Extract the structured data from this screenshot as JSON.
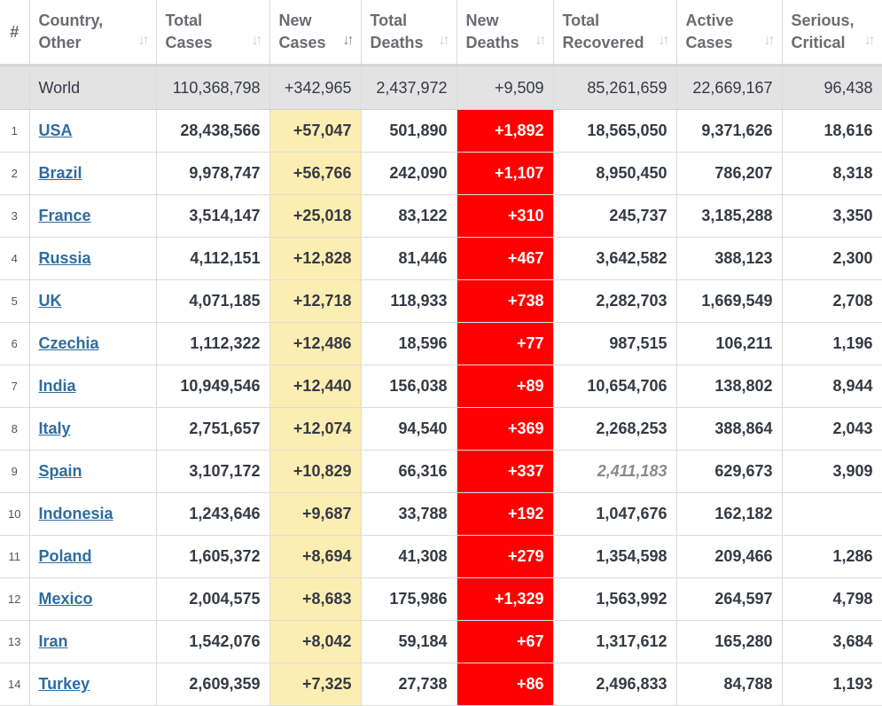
{
  "headers": [
    {
      "lines": [
        "#"
      ],
      "sortable": false
    },
    {
      "lines": [
        "Country,",
        "Other"
      ],
      "sortable": true,
      "active": false
    },
    {
      "lines": [
        "Total",
        "Cases"
      ],
      "sortable": true,
      "active": false
    },
    {
      "lines": [
        "New",
        "Cases"
      ],
      "sortable": true,
      "active": true
    },
    {
      "lines": [
        "Total",
        "Deaths"
      ],
      "sortable": true,
      "active": false
    },
    {
      "lines": [
        "New",
        "Deaths"
      ],
      "sortable": true,
      "active": false
    },
    {
      "lines": [
        "Total",
        "Recovered"
      ],
      "sortable": true,
      "active": false
    },
    {
      "lines": [
        "Active",
        "Cases"
      ],
      "sortable": true,
      "active": false
    },
    {
      "lines": [
        "Serious,",
        "Critical"
      ],
      "sortable": true,
      "active": false
    }
  ],
  "sort_icon": "↓↑",
  "sort_icon_name": "sort-arrows-icon",
  "colors": {
    "new_cases_bg": "#fceeb2",
    "new_deaths_bg": "#ff0000",
    "world_row_bg": "#e3e3e3",
    "link": "#2e6ca0"
  },
  "world": {
    "rank": "",
    "country": "World",
    "total_cases": "110,368,798",
    "new_cases": "+342,965",
    "total_deaths": "2,437,972",
    "new_deaths": "+9,509",
    "total_recovered": "85,261,659",
    "active_cases": "22,669,167",
    "serious_critical": "96,438"
  },
  "rows": [
    {
      "rank": "1",
      "country": "USA",
      "total_cases": "28,438,566",
      "new_cases": "+57,047",
      "total_deaths": "501,890",
      "new_deaths": "+1,892",
      "total_recovered": "18,565,050",
      "active_cases": "9,371,626",
      "serious_critical": "18,616",
      "recovered_estimate": false
    },
    {
      "rank": "2",
      "country": "Brazil",
      "total_cases": "9,978,747",
      "new_cases": "+56,766",
      "total_deaths": "242,090",
      "new_deaths": "+1,107",
      "total_recovered": "8,950,450",
      "active_cases": "786,207",
      "serious_critical": "8,318",
      "recovered_estimate": false
    },
    {
      "rank": "3",
      "country": "France",
      "total_cases": "3,514,147",
      "new_cases": "+25,018",
      "total_deaths": "83,122",
      "new_deaths": "+310",
      "total_recovered": "245,737",
      "active_cases": "3,185,288",
      "serious_critical": "3,350",
      "recovered_estimate": false
    },
    {
      "rank": "4",
      "country": "Russia",
      "total_cases": "4,112,151",
      "new_cases": "+12,828",
      "total_deaths": "81,446",
      "new_deaths": "+467",
      "total_recovered": "3,642,582",
      "active_cases": "388,123",
      "serious_critical": "2,300",
      "recovered_estimate": false
    },
    {
      "rank": "5",
      "country": "UK",
      "total_cases": "4,071,185",
      "new_cases": "+12,718",
      "total_deaths": "118,933",
      "new_deaths": "+738",
      "total_recovered": "2,282,703",
      "active_cases": "1,669,549",
      "serious_critical": "2,708",
      "recovered_estimate": false
    },
    {
      "rank": "6",
      "country": "Czechia",
      "total_cases": "1,112,322",
      "new_cases": "+12,486",
      "total_deaths": "18,596",
      "new_deaths": "+77",
      "total_recovered": "987,515",
      "active_cases": "106,211",
      "serious_critical": "1,196",
      "recovered_estimate": false
    },
    {
      "rank": "7",
      "country": "India",
      "total_cases": "10,949,546",
      "new_cases": "+12,440",
      "total_deaths": "156,038",
      "new_deaths": "+89",
      "total_recovered": "10,654,706",
      "active_cases": "138,802",
      "serious_critical": "8,944",
      "recovered_estimate": false
    },
    {
      "rank": "8",
      "country": "Italy",
      "total_cases": "2,751,657",
      "new_cases": "+12,074",
      "total_deaths": "94,540",
      "new_deaths": "+369",
      "total_recovered": "2,268,253",
      "active_cases": "388,864",
      "serious_critical": "2,043",
      "recovered_estimate": false
    },
    {
      "rank": "9",
      "country": "Spain",
      "total_cases": "3,107,172",
      "new_cases": "+10,829",
      "total_deaths": "66,316",
      "new_deaths": "+337",
      "total_recovered": "2,411,183",
      "active_cases": "629,673",
      "serious_critical": "3,909",
      "recovered_estimate": true
    },
    {
      "rank": "10",
      "country": "Indonesia",
      "total_cases": "1,243,646",
      "new_cases": "+9,687",
      "total_deaths": "33,788",
      "new_deaths": "+192",
      "total_recovered": "1,047,676",
      "active_cases": "162,182",
      "serious_critical": "",
      "recovered_estimate": false
    },
    {
      "rank": "11",
      "country": "Poland",
      "total_cases": "1,605,372",
      "new_cases": "+8,694",
      "total_deaths": "41,308",
      "new_deaths": "+279",
      "total_recovered": "1,354,598",
      "active_cases": "209,466",
      "serious_critical": "1,286",
      "recovered_estimate": false
    },
    {
      "rank": "12",
      "country": "Mexico",
      "total_cases": "2,004,575",
      "new_cases": "+8,683",
      "total_deaths": "175,986",
      "new_deaths": "+1,329",
      "total_recovered": "1,563,992",
      "active_cases": "264,597",
      "serious_critical": "4,798",
      "recovered_estimate": false
    },
    {
      "rank": "13",
      "country": "Iran",
      "total_cases": "1,542,076",
      "new_cases": "+8,042",
      "total_deaths": "59,184",
      "new_deaths": "+67",
      "total_recovered": "1,317,612",
      "active_cases": "165,280",
      "serious_critical": "3,684",
      "recovered_estimate": false
    },
    {
      "rank": "14",
      "country": "Turkey",
      "total_cases": "2,609,359",
      "new_cases": "+7,325",
      "total_deaths": "27,738",
      "new_deaths": "+86",
      "total_recovered": "2,496,833",
      "active_cases": "84,788",
      "serious_critical": "1,193",
      "recovered_estimate": false
    }
  ]
}
